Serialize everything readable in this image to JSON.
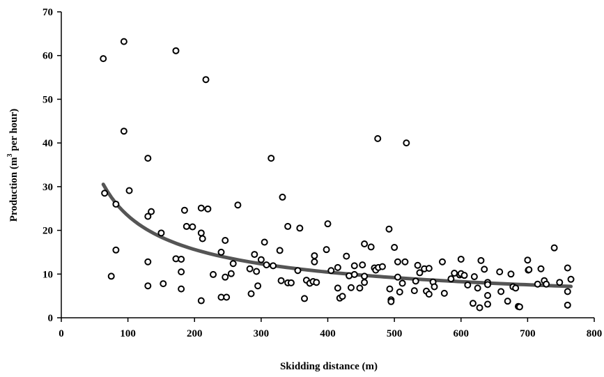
{
  "chart_data": {
    "type": "scatter",
    "title": "",
    "xlabel": "Skidding distance (m)",
    "ylabel_parts": {
      "before": "Production (m",
      "sup": "3",
      "after": " per hour)"
    },
    "xlim": [
      0,
      800
    ],
    "ylim": [
      0,
      70
    ],
    "xticks": [
      0,
      100,
      200,
      300,
      400,
      500,
      600,
      700,
      800
    ],
    "yticks": [
      0,
      10,
      20,
      30,
      40,
      50,
      60,
      70
    ],
    "grid": false,
    "legend": "none",
    "series": [
      {
        "kind": "points",
        "marker": "open-circle",
        "color": "#000000",
        "points": [
          [
            63,
            59.3
          ],
          [
            65,
            28.5
          ],
          [
            75,
            9.5
          ],
          [
            82,
            26
          ],
          [
            82,
            15.5
          ],
          [
            94,
            63.2
          ],
          [
            94,
            42.7
          ],
          [
            102,
            29.1
          ],
          [
            130,
            36.5
          ],
          [
            130,
            23.2
          ],
          [
            130,
            12.8
          ],
          [
            130,
            7.3
          ],
          [
            135,
            24.3
          ],
          [
            150,
            19.4
          ],
          [
            153,
            7.8
          ],
          [
            172,
            61.1
          ],
          [
            172,
            13.5
          ],
          [
            180,
            13.4
          ],
          [
            180,
            10.5
          ],
          [
            180,
            6.6
          ],
          [
            185,
            24.6
          ],
          [
            188,
            20.9
          ],
          [
            197,
            20.8
          ],
          [
            210,
            25.1
          ],
          [
            210,
            19.4
          ],
          [
            212,
            18.1
          ],
          [
            210,
            3.9
          ],
          [
            217,
            54.5
          ],
          [
            220,
            24.9
          ],
          [
            228,
            9.9
          ],
          [
            240,
            15
          ],
          [
            240,
            4.7
          ],
          [
            246,
            17.7
          ],
          [
            246,
            9.3
          ],
          [
            248,
            4.7
          ],
          [
            255,
            10.1
          ],
          [
            258,
            12.4
          ],
          [
            265,
            25.8
          ],
          [
            283,
            11.2
          ],
          [
            285,
            5.5
          ],
          [
            290,
            14.5
          ],
          [
            293,
            10.6
          ],
          [
            295,
            7.3
          ],
          [
            300,
            13.3
          ],
          [
            305,
            17.3
          ],
          [
            308,
            12.1
          ],
          [
            315,
            36.5
          ],
          [
            318,
            11.9
          ],
          [
            328,
            15.4
          ],
          [
            330,
            8.5
          ],
          [
            332,
            27.6
          ],
          [
            340,
            20.9
          ],
          [
            340,
            8
          ],
          [
            345,
            8
          ],
          [
            355,
            10.8
          ],
          [
            358,
            20.5
          ],
          [
            365,
            4.4
          ],
          [
            368,
            8.6
          ],
          [
            373,
            7.9
          ],
          [
            378,
            8.3
          ],
          [
            380,
            12.8
          ],
          [
            380,
            14.2
          ],
          [
            383,
            8.1
          ],
          [
            398,
            15.6
          ],
          [
            400,
            21.5
          ],
          [
            405,
            10.8
          ],
          [
            415,
            11.5
          ],
          [
            415,
            6.8
          ],
          [
            418,
            4.5
          ],
          [
            422,
            4.9
          ],
          [
            428,
            14.1
          ],
          [
            432,
            9.6
          ],
          [
            435,
            6.9
          ],
          [
            440,
            9.9
          ],
          [
            440,
            11.9
          ],
          [
            448,
            6.8
          ],
          [
            452,
            12.1
          ],
          [
            455,
            16.9
          ],
          [
            455,
            9.5
          ],
          [
            455,
            8.1
          ],
          [
            465,
            16.2
          ],
          [
            470,
            11.4
          ],
          [
            472,
            10.9
          ],
          [
            475,
            41
          ],
          [
            476,
            11.5
          ],
          [
            482,
            11.7
          ],
          [
            492,
            20.3
          ],
          [
            493,
            6.6
          ],
          [
            495,
            4.1
          ],
          [
            495,
            3.7
          ],
          [
            500,
            16.1
          ],
          [
            505,
            12.8
          ],
          [
            505,
            9.3
          ],
          [
            508,
            5.9
          ],
          [
            512,
            7.9
          ],
          [
            516,
            12.8
          ],
          [
            518,
            40
          ],
          [
            530,
            6.2
          ],
          [
            532,
            8.4
          ],
          [
            535,
            12
          ],
          [
            538,
            10.3
          ],
          [
            545,
            11.2
          ],
          [
            548,
            6.1
          ],
          [
            552,
            11.3
          ],
          [
            552,
            5.4
          ],
          [
            558,
            8.2
          ],
          [
            560,
            7.1
          ],
          [
            572,
            12.8
          ],
          [
            575,
            5.6
          ],
          [
            585,
            8.9
          ],
          [
            590,
            10.2
          ],
          [
            598,
            9.8
          ],
          [
            600,
            10.1
          ],
          [
            600,
            13.4
          ],
          [
            605,
            9.7
          ],
          [
            610,
            7.5
          ],
          [
            618,
            3.3
          ],
          [
            620,
            9.4
          ],
          [
            625,
            6.8
          ],
          [
            628,
            2.3
          ],
          [
            630,
            13.1
          ],
          [
            635,
            11.1
          ],
          [
            640,
            8.1
          ],
          [
            640,
            7.6
          ],
          [
            640,
            5.1
          ],
          [
            640,
            3.1
          ],
          [
            658,
            10.5
          ],
          [
            660,
            6
          ],
          [
            670,
            3.8
          ],
          [
            675,
            10
          ],
          [
            678,
            7.1
          ],
          [
            682,
            6.8
          ],
          [
            686,
            2.6
          ],
          [
            688,
            2.5
          ],
          [
            700,
            13.2
          ],
          [
            701,
            10.9
          ],
          [
            702,
            11
          ],
          [
            715,
            7.7
          ],
          [
            720,
            11.2
          ],
          [
            725,
            8.5
          ],
          [
            728,
            7.7
          ],
          [
            740,
            16
          ],
          [
            748,
            8.1
          ],
          [
            760,
            11.4
          ],
          [
            760,
            6
          ],
          [
            760,
            2.9
          ],
          [
            765,
            8.8
          ]
        ]
      },
      {
        "kind": "trendline",
        "model": "power",
        "a": 337.5,
        "b": -0.58,
        "x_from": 63,
        "x_to": 765,
        "color": "#555555"
      }
    ]
  }
}
